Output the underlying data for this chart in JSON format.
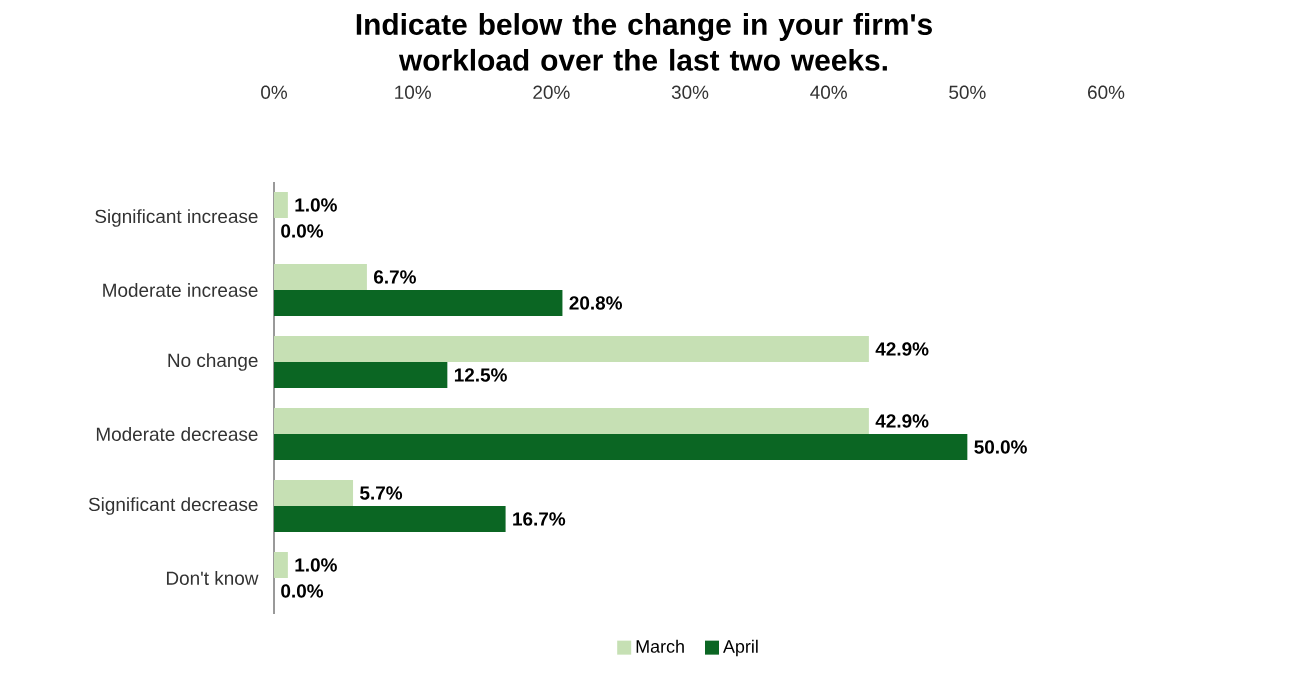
{
  "chart_data": {
    "type": "bar",
    "orientation": "horizontal",
    "title": "Indicate below the change in your firm's workload over the last two weeks.",
    "categories": [
      "Significant increase",
      "Moderate increase",
      "No change",
      "Moderate decrease",
      "Significant decrease",
      "Don't know"
    ],
    "series": [
      {
        "name": "March",
        "color": "#c6e0b4",
        "values": [
          1.0,
          6.7,
          42.9,
          42.9,
          5.7,
          1.0
        ],
        "value_labels": [
          "1.0%",
          "6.7%",
          "42.9%",
          "42.9%",
          "5.7%",
          "1.0%"
        ]
      },
      {
        "name": "April",
        "color": "#0b6623",
        "values": [
          0.0,
          20.8,
          12.5,
          50.0,
          16.7,
          0.0
        ],
        "value_labels": [
          "0.0%",
          "20.8%",
          "12.5%",
          "50.0%",
          "16.7%",
          "0.0%"
        ]
      }
    ],
    "xlim": [
      0,
      60
    ],
    "xticks": [
      {
        "value": 0,
        "label": "0%"
      },
      {
        "value": 10,
        "label": "10%"
      },
      {
        "value": 20,
        "label": "20%"
      },
      {
        "value": 30,
        "label": "30%"
      },
      {
        "value": 40,
        "label": "40%"
      },
      {
        "value": 50,
        "label": "50%"
      },
      {
        "value": 60,
        "label": "60%"
      }
    ],
    "grid": false,
    "legend": "bottom"
  }
}
